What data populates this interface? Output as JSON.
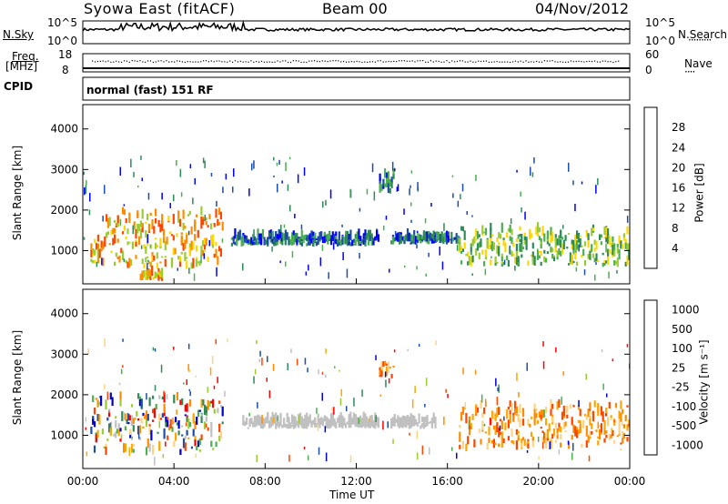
{
  "header": {
    "station": "Syowa East (fitACF)",
    "beam": "Beam 00",
    "date": "04/Nov/2012"
  },
  "labels": {
    "nsky": "N.Sky",
    "freq": "Freq.",
    "mhz": "[MHz]",
    "cpid": "CPID",
    "nsearch": "N.Search",
    "nave": "Nave",
    "cpid_value": "normal (fast) 151 RF",
    "time_axis": "Time UT"
  },
  "noise_panel": {
    "left_ticks": [
      "10^5",
      "10^0"
    ],
    "right_ticks": [
      "10^5",
      "10^0"
    ]
  },
  "freq_panel": {
    "left_ticks": [
      "18",
      "8"
    ],
    "right_ticks": [
      "60",
      "0"
    ]
  },
  "colors": {
    "power": [
      "#0000ff",
      "#1c4da8",
      "#2e8b57",
      "#4caf50",
      "#9acd32",
      "#ffd700",
      "#ff8c00",
      "#ff4500",
      "#ff0000"
    ],
    "velocity": [
      "#ff0000",
      "#ff4500",
      "#ff8c00",
      "#ffa500",
      "#ffd27f",
      "#c0c0c0",
      "#9acd32",
      "#4caf50",
      "#2e8b57",
      "#1c4da8",
      "#0000cd"
    ]
  },
  "chart_data": [
    {
      "type": "heatmap",
      "name": "power",
      "ylabel": "Slant Range [km]",
      "xlabel": "Time UT",
      "x_ticks": [
        "00:00",
        "04:00",
        "08:00",
        "12:00",
        "16:00",
        "20:00",
        "00:00"
      ],
      "y_ticks": [
        1000,
        2000,
        3000,
        4000
      ],
      "ylim": [
        180,
        4600
      ],
      "colorbar_label": "Power [dB]",
      "colorbar_ticks": [
        4,
        8,
        12,
        16,
        20,
        24,
        28
      ],
      "features": [
        {
          "start": "00:20",
          "end": "01:00",
          "range": [
            600,
            1300
          ],
          "level": "high"
        },
        {
          "start": "01:00",
          "end": "06:10",
          "range": [
            550,
            1900
          ],
          "level": "high"
        },
        {
          "start": "02:30",
          "end": "03:30",
          "range": [
            250,
            400
          ],
          "level": "high"
        },
        {
          "start": "06:30",
          "end": "13:00",
          "range": [
            1100,
            1300
          ],
          "level": "low"
        },
        {
          "start": "13:30",
          "end": "16:30",
          "range": [
            1150,
            1300
          ],
          "level": "low"
        },
        {
          "start": "16:30",
          "end": "24:00",
          "range": [
            600,
            1500
          ],
          "level": "medium"
        },
        {
          "start": "13:00",
          "end": "13:40",
          "range": [
            2400,
            2800
          ],
          "level": "low"
        }
      ]
    },
    {
      "type": "heatmap",
      "name": "velocity",
      "ylabel": "Slant Range [km]",
      "xlabel": "Time UT",
      "x_ticks": [
        "00:00",
        "04:00",
        "08:00",
        "12:00",
        "16:00",
        "20:00",
        "00:00"
      ],
      "y_ticks": [
        1000,
        2000,
        3000,
        4000
      ],
      "ylim": [
        180,
        4600
      ],
      "colorbar_label": "Velocity [m s⁻¹]",
      "colorbar_ticks": [
        "1000",
        "500",
        "100",
        "25",
        "-25",
        "-100",
        "-500",
        "-1000"
      ],
      "features": [
        {
          "start": "00:20",
          "end": "06:10",
          "range": [
            500,
            1900
          ],
          "velocity": "mixed"
        },
        {
          "start": "07:00",
          "end": "13:00",
          "range": [
            1150,
            1350
          ],
          "velocity": "ground scatter"
        },
        {
          "start": "13:30",
          "end": "15:30",
          "range": [
            1150,
            1350
          ],
          "velocity": "ground scatter"
        },
        {
          "start": "16:30",
          "end": "24:00",
          "range": [
            600,
            1700
          ],
          "velocity": "negative"
        },
        {
          "start": "13:00",
          "end": "13:40",
          "range": [
            2400,
            2800
          ],
          "velocity": "negative"
        }
      ]
    }
  ]
}
